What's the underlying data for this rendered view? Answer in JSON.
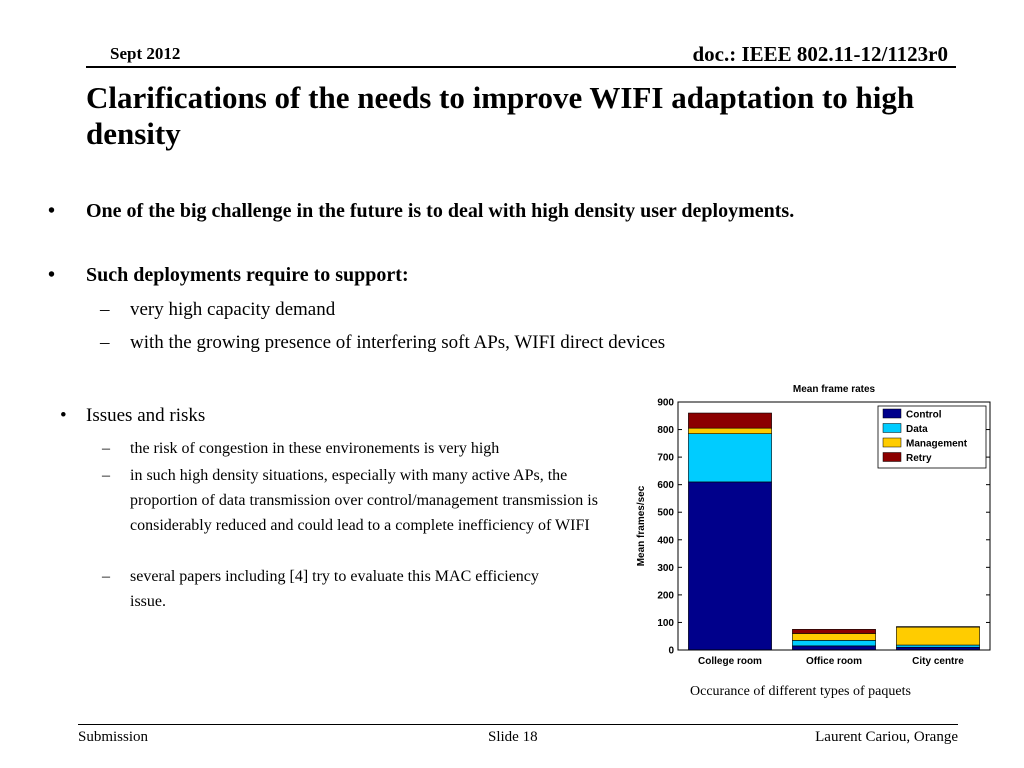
{
  "header": {
    "date": "Sept 2012",
    "doc": "doc.: IEEE 802.11-12/1123r0"
  },
  "title": "Clarifications of the needs to improve WIFI adaptation to high density",
  "bullets": [
    {
      "marker": "•",
      "text": "One of the big challenge in the future is to deal with high density user deployments."
    },
    {
      "marker": "•",
      "text": "Such deployments require to support:",
      "subs": [
        {
          "marker": "–",
          "text": "very high capacity demand"
        },
        {
          "marker": "–",
          "text": "with the growing presence of  interfering soft APs, WIFI direct devices"
        }
      ]
    }
  ],
  "issues": {
    "marker": "•",
    "title": "Issues and risks",
    "subs": [
      {
        "marker": "–",
        "text": "the risk of congestion in these environements is very high"
      },
      {
        "marker": "–",
        "text": "in such high density situations, especially with many active APs, the proportion of data transmission over control/management transmission is considerably reduced and could lead to a complete inefficiency of WIFI"
      },
      {
        "marker": "–",
        "text": "several papers including [4] try to evaluate this MAC efficiency issue."
      }
    ]
  },
  "caption": "Occurance of different types of paquets",
  "footer": {
    "left": "Submission",
    "center": "Slide 18",
    "right": "Laurent Cariou, Orange"
  },
  "chart_data": {
    "type": "bar",
    "stacked": true,
    "title": "Mean frame rates",
    "xlabel": "",
    "ylabel": "Mean frames/sec",
    "ylim": [
      0,
      900
    ],
    "yticks": [
      0,
      100,
      200,
      300,
      400,
      500,
      600,
      700,
      800,
      900
    ],
    "categories": [
      "College room",
      "Office room",
      "City centre"
    ],
    "series": [
      {
        "name": "Control",
        "color": "#00008b",
        "values": [
          610,
          15,
          10
        ]
      },
      {
        "name": "Data",
        "color": "#00ccff",
        "values": [
          175,
          20,
          8
        ]
      },
      {
        "name": "Management",
        "color": "#ffcc00",
        "values": [
          20,
          25,
          65
        ]
      },
      {
        "name": "Retry",
        "color": "#8b0000",
        "values": [
          55,
          15,
          2
        ]
      }
    ],
    "legend": "top-right",
    "grid": false
  }
}
